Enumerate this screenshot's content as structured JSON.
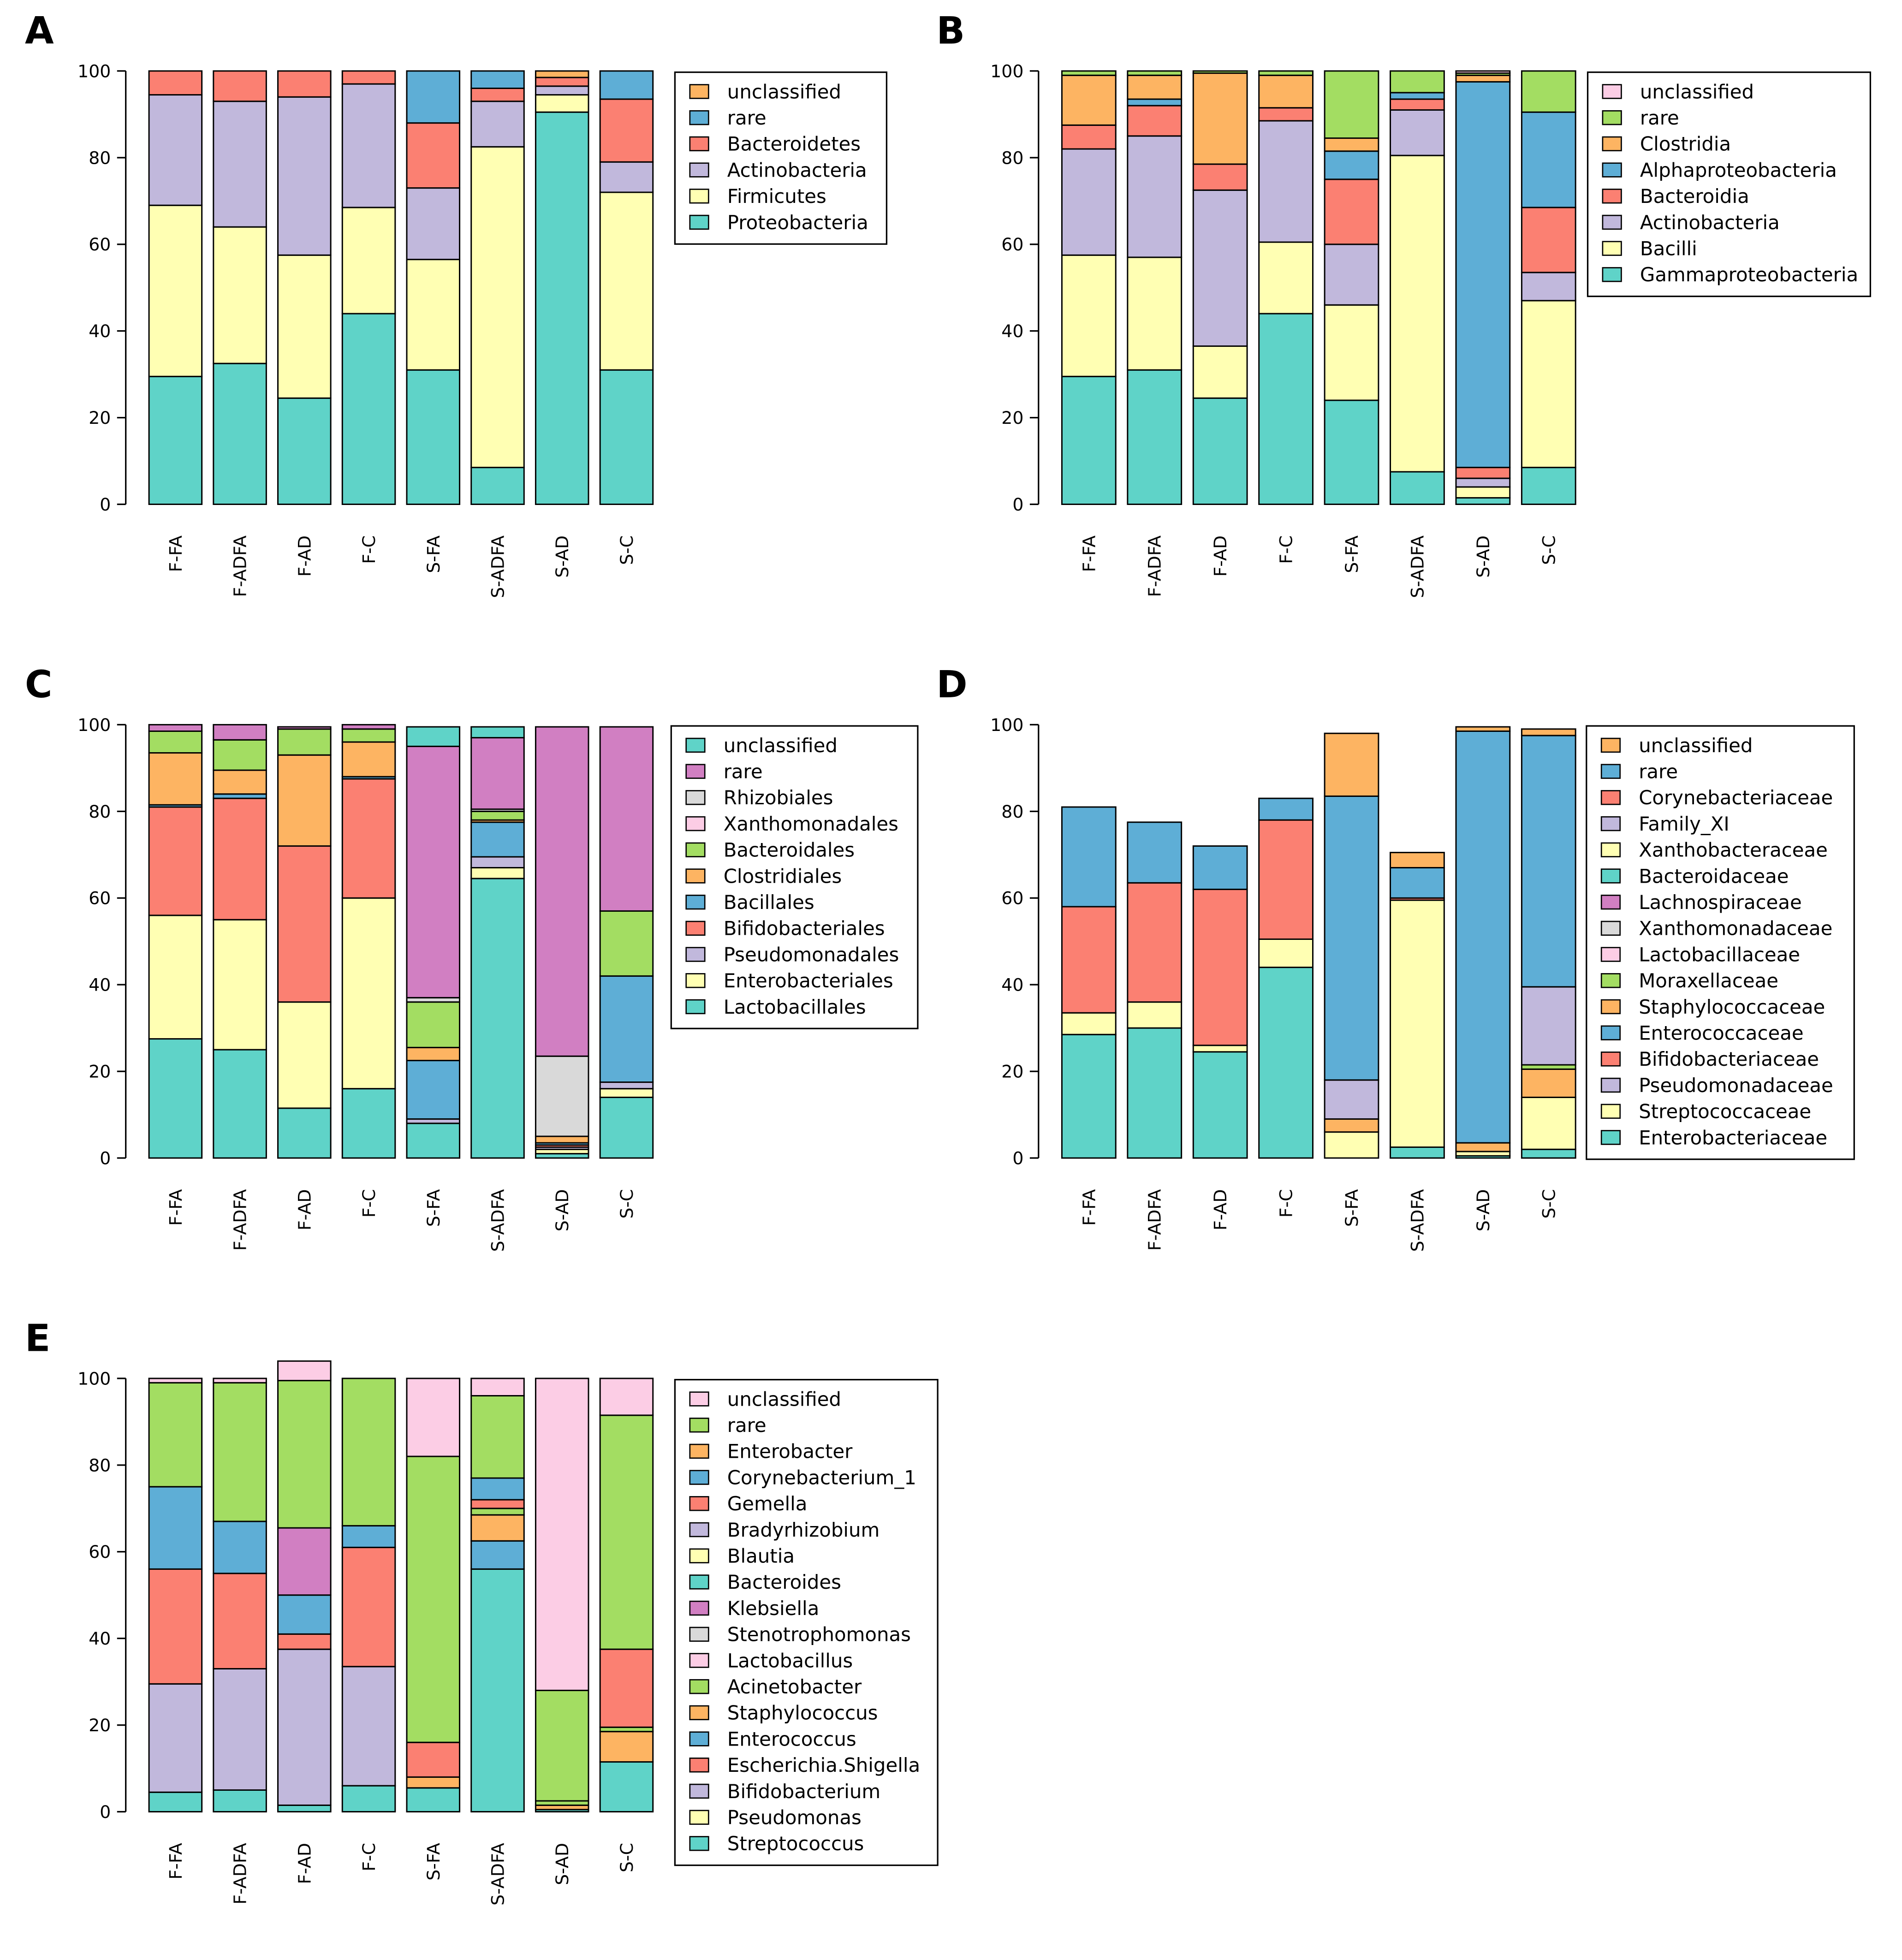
{
  "figure": {
    "panels": [
      {
        "label": "A"
      },
      {
        "label": "B"
      },
      {
        "label": "C"
      },
      {
        "label": "D"
      },
      {
        "label": "E"
      }
    ]
  },
  "chart_data": [
    {
      "panel": "A",
      "type": "bar",
      "stacked": true,
      "title": "",
      "xlabel": "",
      "ylabel": "",
      "ylim": [
        0,
        100
      ],
      "yticks": [
        0,
        20,
        40,
        60,
        80,
        100
      ],
      "categories": [
        "F-FA",
        "F-ADFA",
        "F-AD",
        "F-C",
        "S-FA",
        "S-ADFA",
        "S-AD",
        "S-C"
      ],
      "series": [
        {
          "name": "Proteobacteria",
          "color": "#5fd3c8",
          "values": [
            29.5,
            32.5,
            24.5,
            44,
            31,
            8.5,
            90.5,
            31
          ]
        },
        {
          "name": "Firmicutes",
          "color": "#ffffb3",
          "values": [
            39.5,
            31.5,
            33,
            24.5,
            25.5,
            74,
            4,
            41
          ]
        },
        {
          "name": "Actinobacteria",
          "color": "#c1b8dc",
          "values": [
            25.5,
            29,
            36.5,
            28.5,
            16.5,
            10.5,
            2,
            7
          ]
        },
        {
          "name": "Bacteroidetes",
          "color": "#fb8072",
          "values": [
            5.5,
            7,
            6,
            3,
            15,
            3,
            2,
            14.5
          ]
        },
        {
          "name": "rare",
          "color": "#5eaed6",
          "values": [
            0,
            0,
            0,
            0,
            12,
            4,
            0,
            6.5
          ]
        },
        {
          "name": "unclassified",
          "color": "#fdb462",
          "values": [
            0,
            0,
            0,
            0,
            0,
            0,
            1.5,
            0
          ]
        }
      ]
    },
    {
      "panel": "B",
      "type": "bar",
      "stacked": true,
      "title": "",
      "xlabel": "",
      "ylabel": "",
      "ylim": [
        0,
        100
      ],
      "yticks": [
        0,
        20,
        40,
        60,
        80,
        100
      ],
      "categories": [
        "F-FA",
        "F-ADFA",
        "F-AD",
        "F-C",
        "S-FA",
        "S-ADFA",
        "S-AD",
        "S-C"
      ],
      "series": [
        {
          "name": "Gammaproteobacteria",
          "color": "#5fd3c8",
          "values": [
            29.5,
            31,
            24.5,
            44,
            24,
            7.5,
            1.5,
            8.5
          ]
        },
        {
          "name": "Bacilli",
          "color": "#ffffb3",
          "values": [
            28,
            26,
            12,
            16.5,
            22,
            73,
            2.5,
            38.5
          ]
        },
        {
          "name": "Actinobacteria",
          "color": "#c1b8dc",
          "values": [
            24.5,
            28,
            36,
            28,
            14,
            10.5,
            2,
            6.5
          ]
        },
        {
          "name": "Bacteroidia",
          "color": "#fb8072",
          "values": [
            5.5,
            7,
            6,
            3,
            15,
            2.5,
            2.5,
            15
          ]
        },
        {
          "name": "Alphaproteobacteria",
          "color": "#5eaed6",
          "values": [
            0,
            1.5,
            0,
            0,
            6.5,
            1.5,
            89,
            22
          ]
        },
        {
          "name": "Clostridia",
          "color": "#fdb462",
          "values": [
            11.5,
            5.5,
            21,
            7.5,
            3,
            0,
            1.5,
            0
          ]
        },
        {
          "name": "rare",
          "color": "#a3dd62",
          "values": [
            1,
            1,
            0.5,
            1,
            15.5,
            5,
            0.5,
            9.5
          ]
        },
        {
          "name": "unclassified",
          "color": "#fccde5",
          "values": [
            0,
            0,
            0,
            0,
            0,
            0,
            0.5,
            0
          ]
        }
      ]
    },
    {
      "panel": "C",
      "type": "bar",
      "stacked": true,
      "title": "",
      "xlabel": "",
      "ylabel": "",
      "ylim": [
        0,
        100
      ],
      "yticks": [
        0,
        20,
        40,
        60,
        80,
        100
      ],
      "categories": [
        "F-FA",
        "F-ADFA",
        "F-AD",
        "F-C",
        "S-FA",
        "S-ADFA",
        "S-AD",
        "S-C"
      ],
      "series": [
        {
          "name": "Lactobacillales",
          "color": "#5fd3c8",
          "values": [
            27.5,
            25,
            11.5,
            16,
            8,
            64.5,
            1,
            14
          ]
        },
        {
          "name": "Enterobacteriales",
          "color": "#ffffb3",
          "values": [
            28.5,
            30,
            24.5,
            44,
            0,
            2.5,
            1,
            2
          ]
        },
        {
          "name": "Pseudomonadales",
          "color": "#c1b8dc",
          "values": [
            0,
            0,
            0,
            0,
            1,
            2.5,
            0.5,
            1.5
          ]
        },
        {
          "name": "Bifidobacteriales",
          "color": "#fb8072",
          "values": [
            25,
            28,
            36,
            27.5,
            0,
            0,
            0.5,
            0
          ]
        },
        {
          "name": "Bacillales",
          "color": "#5eaed6",
          "values": [
            0.5,
            1,
            0,
            0.5,
            13.5,
            8,
            0.5,
            24.5
          ]
        },
        {
          "name": "Clostridiales",
          "color": "#fdb462",
          "values": [
            12,
            5.5,
            21,
            8,
            3,
            0.5,
            1.5,
            0
          ]
        },
        {
          "name": "Bacteroidales",
          "color": "#a3dd62",
          "values": [
            5,
            7,
            6,
            3,
            10.5,
            2,
            0,
            15
          ]
        },
        {
          "name": "Xanthomonadales",
          "color": "#fccde5",
          "values": [
            0,
            0,
            0,
            0,
            0,
            0,
            0,
            0
          ]
        },
        {
          "name": "Rhizobiales",
          "color": "#d9d9d9",
          "values": [
            0,
            0,
            0,
            0,
            1,
            0.5,
            18.5,
            0
          ]
        },
        {
          "name": "rare",
          "color": "#d17fc2",
          "values": [
            1.5,
            3.5,
            0.5,
            1,
            58,
            16.5,
            76,
            42.5
          ]
        },
        {
          "name": "unclassified",
          "color": "#5fd3c8",
          "values": [
            0,
            0,
            0,
            0,
            4.5,
            2.5,
            0,
            0
          ]
        }
      ]
    },
    {
      "panel": "D",
      "type": "bar",
      "stacked": true,
      "title": "",
      "xlabel": "",
      "ylabel": "",
      "ylim": [
        0,
        100
      ],
      "yticks": [
        0,
        20,
        40,
        60,
        80,
        100
      ],
      "categories": [
        "F-FA",
        "F-ADFA",
        "F-AD",
        "F-C",
        "S-FA",
        "S-ADFA",
        "S-AD",
        "S-C"
      ],
      "series": [
        {
          "name": "Enterobacteriaceae",
          "color": "#5fd3c8",
          "values": [
            28.5,
            30,
            24.5,
            44,
            0,
            2.5,
            0.5,
            2
          ]
        },
        {
          "name": "Streptococcaceae",
          "color": "#ffffb3",
          "values": [
            5,
            6,
            1.5,
            6.5,
            6,
            57,
            1,
            12
          ]
        },
        {
          "name": "Pseudomonadaceae",
          "color": "#c1b8dc",
          "values": [
            0,
            0,
            0,
            0,
            0,
            0,
            0,
            0
          ]
        },
        {
          "name": "Bifidobacteriaceae",
          "color": "#fb8072",
          "values": [
            24.5,
            27.5,
            36,
            27.5,
            0,
            0.5,
            0,
            0
          ]
        },
        {
          "name": "Enterococcaceae",
          "color": "#5eaed6",
          "values": [
            0,
            0,
            0,
            0,
            0,
            0,
            0,
            0
          ]
        },
        {
          "name": "Staphylococcaceae",
          "color": "#fdb462",
          "values": [
            0,
            0,
            0,
            0,
            3,
            0,
            2,
            6.5
          ]
        },
        {
          "name": "Moraxellaceae",
          "color": "#a3dd62",
          "values": [
            0,
            0,
            0,
            0,
            0,
            0,
            0,
            1
          ]
        },
        {
          "name": "Lactobacillaceae",
          "color": "#fccde5",
          "values": [
            0,
            0,
            0,
            0,
            0,
            0,
            0,
            0
          ]
        },
        {
          "name": "Xanthomonadaceae",
          "color": "#d9d9d9",
          "values": [
            0,
            0,
            0,
            0,
            0,
            0,
            0,
            0
          ]
        },
        {
          "name": "Lachnospiraceae",
          "color": "#d17fc2",
          "values": [
            0,
            0,
            0,
            0,
            0,
            0,
            0,
            0
          ]
        },
        {
          "name": "Bacteroidaceae",
          "color": "#5fd3c8",
          "values": [
            0,
            0,
            0,
            0,
            0,
            0,
            0,
            0
          ]
        },
        {
          "name": "Xanthobacteraceae",
          "color": "#ffffb3",
          "values": [
            0,
            0,
            0,
            0,
            0,
            0,
            0,
            0
          ]
        },
        {
          "name": "Family_XI",
          "color": "#c1b8dc",
          "values": [
            0,
            0,
            0,
            0,
            9,
            0,
            0,
            18
          ]
        },
        {
          "name": "Corynebacteriaceae",
          "color": "#fb8072",
          "values": [
            0,
            0,
            0,
            0,
            0,
            0,
            0,
            0
          ]
        },
        {
          "name": "rare",
          "color": "#5eaed6",
          "values": [
            23,
            14,
            10,
            5,
            65.5,
            7,
            95,
            58
          ]
        },
        {
          "name": "unclassified",
          "color": "#fdb462",
          "values": [
            0,
            0,
            0,
            0,
            14.5,
            3.5,
            1,
            1.5
          ]
        }
      ]
    },
    {
      "panel": "E",
      "type": "bar",
      "stacked": true,
      "title": "",
      "xlabel": "",
      "ylabel": "",
      "ylim": [
        0,
        100
      ],
      "yticks": [
        0,
        20,
        40,
        60,
        80,
        100
      ],
      "categories": [
        "F-FA",
        "F-ADFA",
        "F-AD",
        "F-C",
        "S-FA",
        "S-ADFA",
        "S-AD",
        "S-C"
      ],
      "series": [
        {
          "name": "Streptococcus",
          "color": "#5fd3c8",
          "values": [
            4.5,
            5,
            1.5,
            6,
            5.5,
            56,
            0.5,
            11.5
          ]
        },
        {
          "name": "Pseudomonas",
          "color": "#ffffb3",
          "values": [
            0,
            0,
            0,
            0,
            0,
            0,
            0,
            0
          ]
        },
        {
          "name": "Bifidobacterium",
          "color": "#c1b8dc",
          "values": [
            25,
            28,
            36,
            27.5,
            0,
            0,
            0,
            0
          ]
        },
        {
          "name": "Escherichia.Shigella",
          "color": "#fb8072",
          "values": [
            26.5,
            22,
            3.5,
            27.5,
            0,
            0,
            0,
            0
          ]
        },
        {
          "name": "Enterococcus",
          "color": "#5eaed6",
          "values": [
            0,
            0,
            9,
            0,
            0,
            6.5,
            0,
            0
          ]
        },
        {
          "name": "Staphylococcus",
          "color": "#fdb462",
          "values": [
            0,
            0,
            0,
            0,
            2.5,
            6,
            1,
            7
          ]
        },
        {
          "name": "Acinetobacter",
          "color": "#a3dd62",
          "values": [
            0,
            0,
            0,
            0,
            0,
            1.5,
            1,
            1
          ]
        },
        {
          "name": "Lactobacillus",
          "color": "#fccde5",
          "values": [
            0,
            0,
            0,
            0,
            0,
            0,
            0,
            0
          ]
        },
        {
          "name": "Stenotrophomonas",
          "color": "#d9d9d9",
          "values": [
            0,
            0,
            0,
            0,
            0,
            0,
            0,
            0
          ]
        },
        {
          "name": "Klebsiella",
          "color": "#d17fc2",
          "values": [
            0,
            0,
            15.5,
            0,
            0,
            0,
            0,
            0
          ]
        },
        {
          "name": "Bacteroides",
          "color": "#5fd3c8",
          "values": [
            0,
            0,
            0,
            0,
            0,
            0,
            0,
            0
          ]
        },
        {
          "name": "Blautia",
          "color": "#ffffb3",
          "values": [
            0,
            0,
            0,
            0,
            0,
            0,
            0,
            0
          ]
        },
        {
          "name": "Bradyrhizobium",
          "color": "#c1b8dc",
          "values": [
            0,
            0,
            0,
            0,
            0,
            0,
            0,
            0
          ]
        },
        {
          "name": "Gemella",
          "color": "#fb8072",
          "values": [
            0,
            0,
            0,
            0,
            8,
            2,
            0,
            18
          ]
        },
        {
          "name": "Corynebacterium_1",
          "color": "#5eaed6",
          "values": [
            19,
            12,
            0,
            5,
            0,
            5,
            0,
            0
          ]
        },
        {
          "name": "Enterobacter",
          "color": "#fdb462",
          "values": [
            0,
            0,
            0,
            0,
            0,
            0,
            0,
            0
          ]
        },
        {
          "name": "rare",
          "color": "#a3dd62",
          "values": [
            24,
            32,
            34,
            34,
            66,
            19,
            25.5,
            54
          ]
        },
        {
          "name": "unclassified",
          "color": "#fccde5",
          "values": [
            1,
            1,
            4.5,
            0,
            18,
            4,
            72,
            8.5
          ]
        }
      ]
    }
  ]
}
